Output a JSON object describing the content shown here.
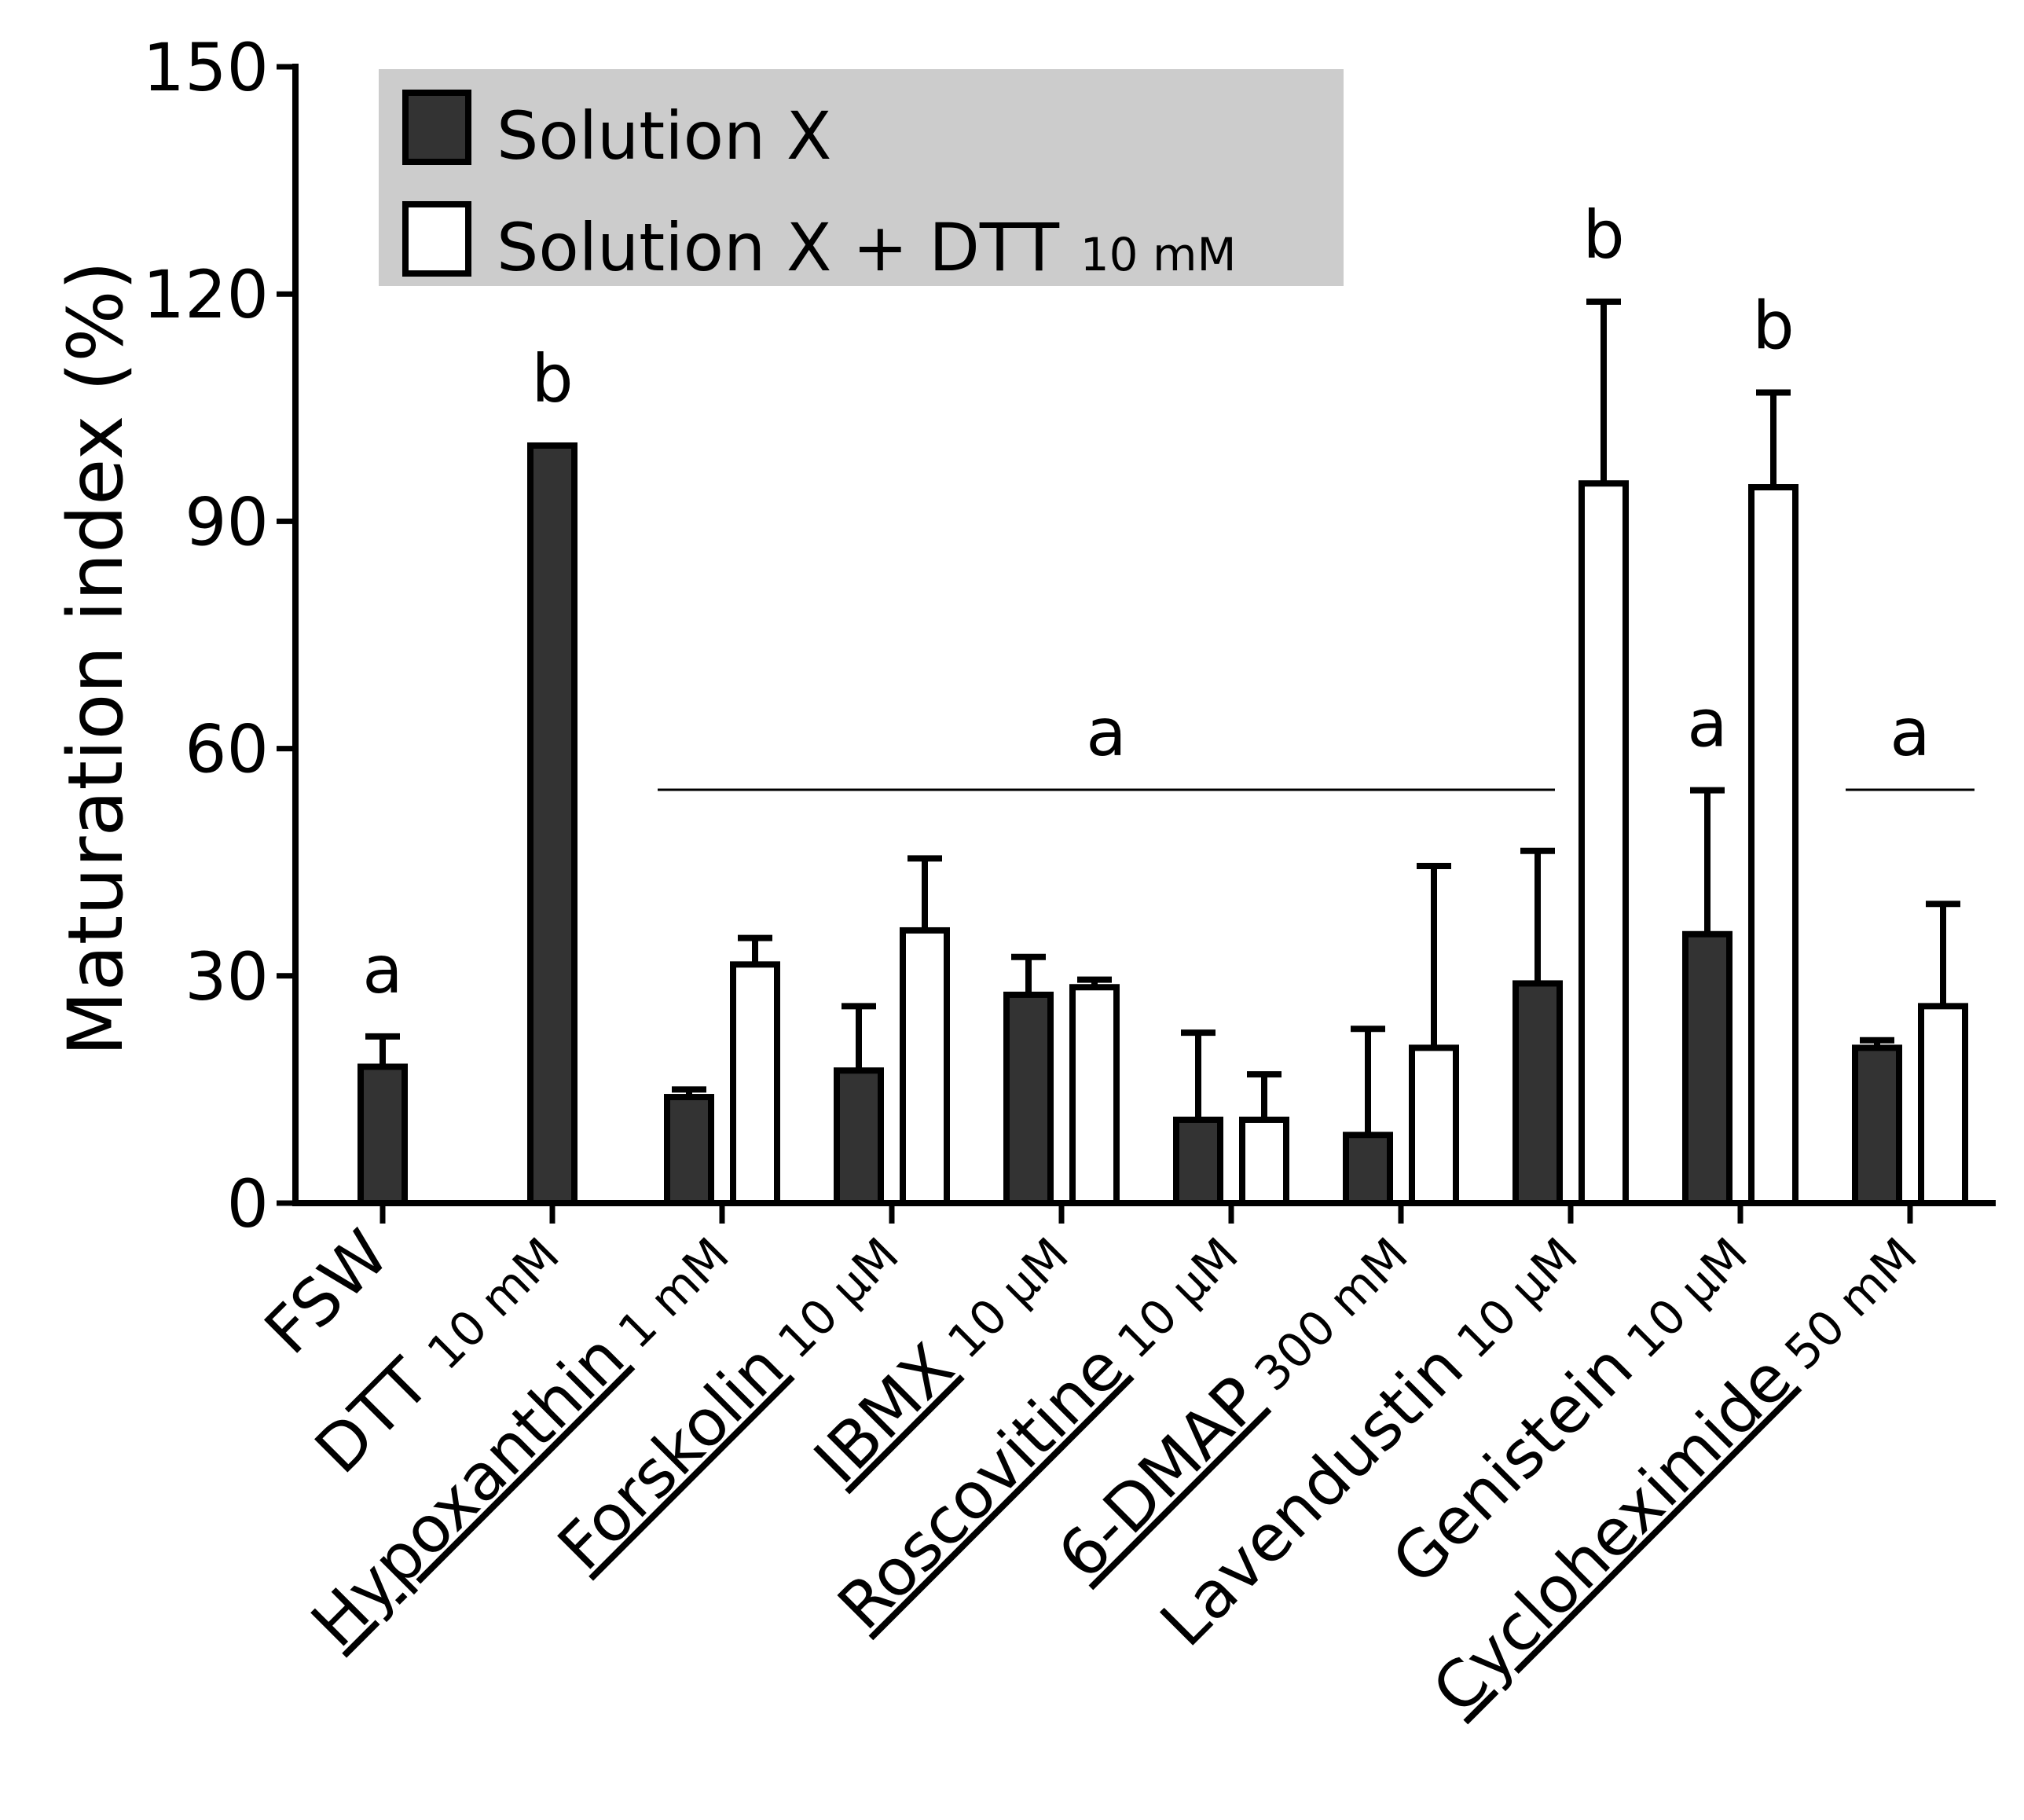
{
  "chart_data": {
    "type": "bar",
    "ylabel": "Maturation index (%)",
    "ylim": [
      0,
      150
    ],
    "yticks": [
      0,
      30,
      60,
      90,
      120,
      150
    ],
    "colors": {
      "solution_x": "#333333",
      "solution_x_dtt": "#ffffff",
      "stroke": "#000000"
    },
    "legend": [
      {
        "name": "Solution X",
        "suffix": ""
      },
      {
        "name": "Solution X + DTT ",
        "suffix": "10 mM"
      }
    ],
    "groups": [
      {
        "name": "FSW",
        "conc": "",
        "underline": false,
        "x_val": 18,
        "x_err": 4,
        "dtt_val": null,
        "dtt_err": null
      },
      {
        "name": "DTT ",
        "conc": "10 mM",
        "underline": false,
        "x_val": 100,
        "x_err": 0,
        "dtt_val": null,
        "dtt_err": null
      },
      {
        "name": "Hypoxanthin",
        "conc": " 1 mM",
        "underline": true,
        "x_val": 14,
        "x_err": 1,
        "dtt_val": 31.5,
        "dtt_err": 3.5
      },
      {
        "name": "Forskolin",
        "conc": " 10 µM",
        "underline": true,
        "x_val": 17.5,
        "x_err": 8.5,
        "dtt_val": 36,
        "dtt_err": 9.5
      },
      {
        "name": "IBMX",
        "conc": " 10 µM",
        "underline": true,
        "x_val": 27.5,
        "x_err": 5,
        "dtt_val": 28.5,
        "dtt_err": 1
      },
      {
        "name": "Roscovitine",
        "conc": " 10 µM",
        "underline": true,
        "x_val": 11,
        "x_err": 11.5,
        "dtt_val": 11,
        "dtt_err": 6
      },
      {
        "name": "6-DMAP",
        "conc": " 300 mM",
        "underline": true,
        "x_val": 9,
        "x_err": 14,
        "dtt_val": 20.5,
        "dtt_err": 24
      },
      {
        "name": "Lavendustin",
        "conc": " 10 µM",
        "underline": false,
        "x_val": 29,
        "x_err": 17.5,
        "dtt_val": 95,
        "dtt_err": 24
      },
      {
        "name": "Genistein",
        "conc": " 10 µM",
        "underline": false,
        "x_val": 35.5,
        "x_err": 19,
        "dtt_val": 94.5,
        "dtt_err": 12.5
      },
      {
        "name": "Cycloheximide",
        "conc": " 50 mM",
        "underline": true,
        "x_val": 20.5,
        "x_err": 1,
        "dtt_val": 26,
        "dtt_err": 13.5
      }
    ],
    "annotations": [
      {
        "text": "a",
        "target": "FSW-solution-x"
      },
      {
        "text": "b",
        "target": "DTT-solution-x"
      },
      {
        "text": "a",
        "target": "bracket-hypoxanthin-to-lavendustin"
      },
      {
        "text": "b",
        "target": "Lavendustin-solution-x-dtt"
      },
      {
        "text": "a",
        "target": "Genistein-solution-x"
      },
      {
        "text": "b",
        "target": "Genistein-solution-x-dtt"
      },
      {
        "text": "a",
        "target": "bracket-cycloheximide"
      }
    ]
  }
}
